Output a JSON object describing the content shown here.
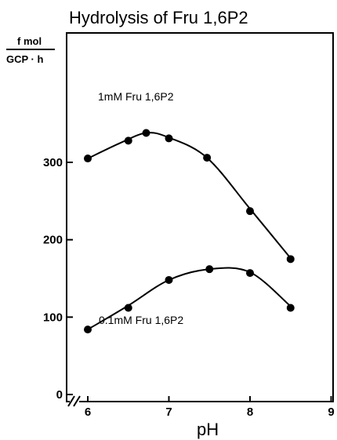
{
  "chart_data": {
    "type": "scatter",
    "title": "Hydrolysis of Fru 1,6P2",
    "ylabel_top": "f mol",
    "ylabel_bottom": "GCP · h",
    "xlabel": "pH",
    "xlim": [
      6,
      9
    ],
    "ylim": [
      0,
      360
    ],
    "xticks": [
      "6",
      "7",
      "8",
      "9"
    ],
    "yticks": [
      "0",
      "100",
      "200",
      "300"
    ],
    "x_axis_break": true,
    "grid": false,
    "series": [
      {
        "name": "1mM Fru 1,6P2",
        "x": [
          6.0,
          6.5,
          6.72,
          7.0,
          7.47,
          8.0,
          8.5
        ],
        "y": [
          305,
          328,
          338,
          331,
          306,
          237,
          175
        ],
        "curve": [
          [
            6.0,
            305
          ],
          [
            6.4,
            325
          ],
          [
            6.72,
            338
          ],
          [
            7.0,
            332
          ],
          [
            7.47,
            306
          ],
          [
            8.0,
            240
          ],
          [
            8.5,
            176
          ]
        ]
      },
      {
        "name": "0.1mM Fru 1,6P2",
        "x": [
          6.0,
          6.5,
          7.0,
          7.5,
          8.0,
          8.5
        ],
        "y": [
          84,
          112,
          148,
          162,
          157,
          112
        ],
        "curve": [
          [
            6.0,
            84
          ],
          [
            6.5,
            115
          ],
          [
            7.0,
            148
          ],
          [
            7.5,
            162
          ],
          [
            8.0,
            158
          ],
          [
            8.5,
            114
          ]
        ]
      }
    ]
  }
}
